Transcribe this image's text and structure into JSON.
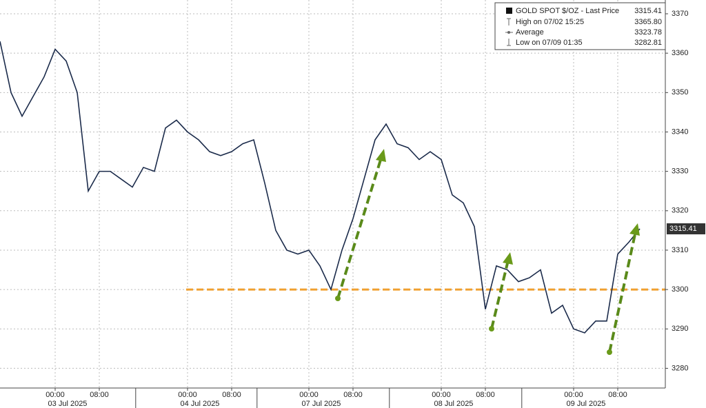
{
  "chart_data": {
    "type": "line",
    "categories": [
      null,
      null,
      null,
      null,
      null,
      "00:00",
      null,
      null,
      null,
      "08:00",
      null,
      null,
      null,
      null,
      null,
      null,
      null,
      "00:00",
      null,
      null,
      null,
      "08:00",
      null,
      null,
      null,
      null,
      null,
      null,
      "00:00",
      null,
      null,
      null,
      "08:00",
      null,
      null,
      null,
      null,
      null,
      null,
      null,
      "00:00",
      null,
      null,
      null,
      "08:00",
      null,
      null,
      null,
      null,
      null,
      null,
      null,
      "00:00",
      null,
      null,
      null,
      "08:00",
      null,
      null
    ],
    "date_labels": [
      {
        "value": 5,
        "label": "03 Jul 2025"
      },
      {
        "value": 17,
        "label": "04 Jul 2025"
      },
      {
        "value": 28,
        "label": "07 Jul 2025"
      },
      {
        "value": 40,
        "label": "08 Jul 2025"
      },
      {
        "value": 52,
        "label": "09 Jul 2025"
      }
    ],
    "series": [
      {
        "name": "GOLD SPOT $/OZ - Last Price",
        "color": "#1a2a4a",
        "values": [
          3363,
          3350,
          3344,
          3349,
          3354,
          3361,
          3358,
          3350,
          3325,
          3330,
          3330,
          3328,
          3326,
          3331,
          3330,
          3341,
          3343,
          3340,
          3338,
          3335,
          3334,
          3335,
          3337,
          3338,
          3327,
          3315,
          3310,
          3309,
          3310,
          3306,
          3300,
          3310,
          3318,
          3328,
          3338,
          3342,
          3337,
          3336,
          3333,
          3335,
          3333,
          3324,
          3322,
          3316,
          3295,
          3306,
          3305,
          3302,
          3303,
          3305,
          3294,
          3296,
          3290,
          3289,
          3292,
          3292,
          3309,
          3312,
          3315.41
        ]
      }
    ],
    "stats": [
      {
        "label": "High on 07/02 15:25",
        "value": 3365.8,
        "value_label": "3365.80"
      },
      {
        "label": "Average",
        "value": 3323.78,
        "value_label": "3323.78"
      },
      {
        "label": "Low on 07/09 01:35",
        "value": 3282.81,
        "value_label": "3282.81"
      }
    ],
    "reference_line": {
      "value": 3300,
      "color": "#f0a030"
    },
    "ylim": [
      3275,
      3373.5
    ],
    "yticks": [
      3280,
      3290,
      3300,
      3310,
      3320,
      3330,
      3340,
      3350,
      3360,
      3370
    ],
    "grid": true
  }
}
